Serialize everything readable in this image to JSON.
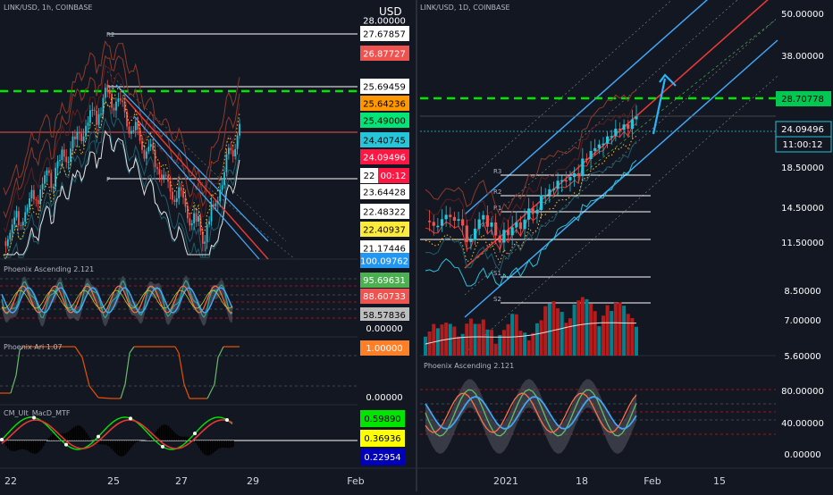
{
  "left_chart": {
    "title": "LINK/USD, 1h, COINBASE",
    "currency": "USD",
    "pivot_labels": [
      "R2",
      "R1",
      "P"
    ],
    "scale_labels": [
      {
        "text": "28.00000",
        "bg": "#131722",
        "fg": "#ffffff"
      },
      {
        "text": "27.67857",
        "bg": "#ffffff",
        "fg": "#000000"
      },
      {
        "text": "26.87727",
        "bg": "#ef5350",
        "fg": "#ffffff"
      },
      {
        "text": "25.69459",
        "bg": "#ffffff",
        "fg": "#000000"
      },
      {
        "text": "25.64236",
        "bg": "#ff9800",
        "fg": "#000000"
      },
      {
        "text": "25.49000",
        "bg": "#00e676",
        "fg": "#000000"
      },
      {
        "text": "24.40745",
        "bg": "#26c6da",
        "fg": "#000000"
      },
      {
        "text": "24.09496",
        "bg": "#ff1744",
        "fg": "#ffffff"
      },
      {
        "text": "22",
        "bg": "#ffffff",
        "fg": "#000000"
      },
      {
        "text": "00:12",
        "bg": "#ff1744",
        "fg": "#ffffff"
      },
      {
        "text": "23.64428",
        "bg": "#ffffff",
        "fg": "#000000"
      },
      {
        "text": "22.48322",
        "bg": "#ffffff",
        "fg": "#000000"
      },
      {
        "text": "22.40937",
        "bg": "#ffeb3b",
        "fg": "#000000"
      },
      {
        "text": "21.17446",
        "bg": "#ffffff",
        "fg": "#000000"
      },
      {
        "text": "100.09762",
        "bg": "#2196f3",
        "fg": "#ffffff"
      }
    ],
    "osc_labels": [
      {
        "text": "95.69631",
        "bg": "#4caf50",
        "fg": "#ffffff"
      },
      {
        "text": "88.60733",
        "bg": "#ef5350",
        "fg": "#ffffff"
      },
      {
        "text": "58.57836",
        "bg": "#bdbdbd",
        "fg": "#000000"
      },
      {
        "text": "0.00000",
        "bg": "#131722",
        "fg": "#ffffff"
      }
    ],
    "ari_labels": [
      {
        "text": "1.00000",
        "bg": "#ff7f27",
        "fg": "#ffffff"
      },
      {
        "text": "0.00000",
        "bg": "#131722",
        "fg": "#ffffff"
      }
    ],
    "macd_labels": [
      {
        "text": "0.59890",
        "bg": "#00e600",
        "fg": "#000000"
      },
      {
        "text": "0.36936",
        "bg": "#ffff00",
        "fg": "#000000"
      },
      {
        "text": "0.22954",
        "bg": "#0000b8",
        "fg": "#ffffff"
      }
    ],
    "indicators": [
      "Phoenix Ascending 2.121",
      "Phoenix Ari 1.07",
      "CM_Ult_MacD_MTF"
    ],
    "x_ticks": [
      "22",
      "25",
      "27",
      "29",
      "Feb"
    ]
  },
  "right_chart": {
    "title": "LINK/USD, 1D, COINBASE",
    "pivot_labels": [
      "R3",
      "R2",
      "R1",
      "S1",
      "S2"
    ],
    "scale_labels": [
      {
        "text": "50.00000",
        "bg": "#131722",
        "fg": "#ffffff"
      },
      {
        "text": "38.00000",
        "bg": "#131722",
        "fg": "#ffffff"
      },
      {
        "text": "28.70778",
        "bg": "#00c853",
        "fg": "#000000"
      },
      {
        "text": "24.09496",
        "bg": "#131722",
        "fg": "#ffffff",
        "border": "#26c6da"
      },
      {
        "text": "11:00:12",
        "bg": "#131722",
        "fg": "#ffffff",
        "border": "#26c6da"
      },
      {
        "text": "18.50000",
        "bg": "#131722",
        "fg": "#ffffff"
      },
      {
        "text": "14.50000",
        "bg": "#131722",
        "fg": "#ffffff"
      },
      {
        "text": "11.50000",
        "bg": "#131722",
        "fg": "#ffffff"
      },
      {
        "text": "8.50000",
        "bg": "#131722",
        "fg": "#ffffff"
      },
      {
        "text": "7.00000",
        "bg": "#131722",
        "fg": "#ffffff"
      },
      {
        "text": "5.60000",
        "bg": "#131722",
        "fg": "#ffffff"
      }
    ],
    "osc_scale": [
      "80.00000",
      "40.00000",
      "0.00000"
    ],
    "indicator": "Phoenix Ascending 2.121",
    "x_ticks": [
      "2021",
      "18",
      "Feb",
      "15"
    ]
  }
}
